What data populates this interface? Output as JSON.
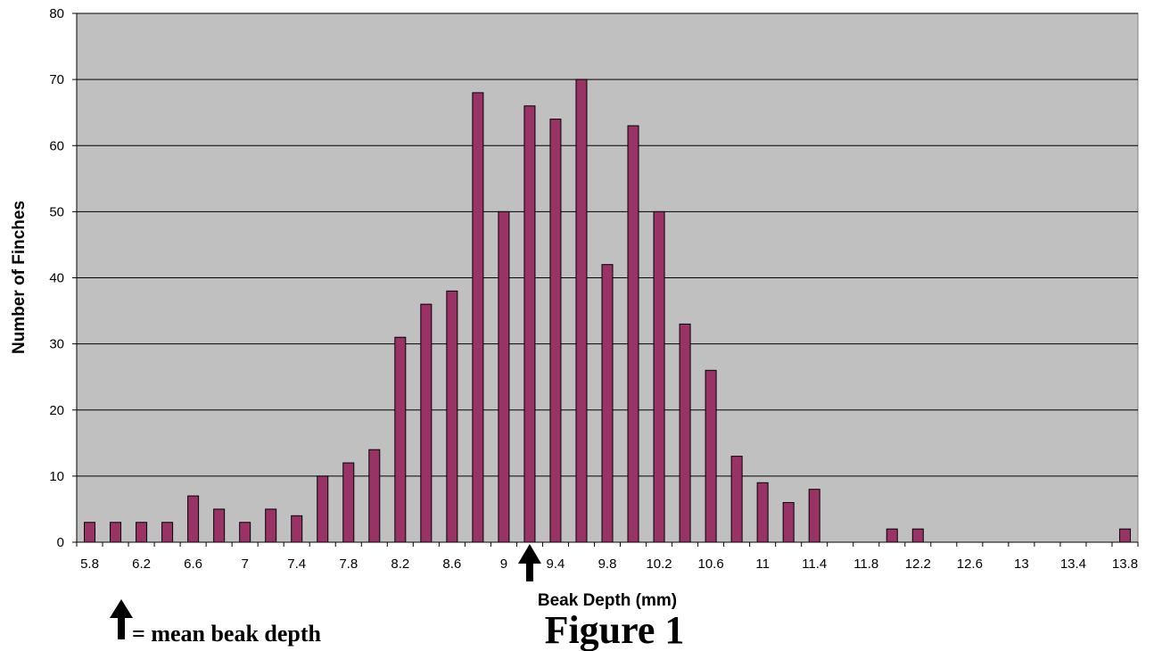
{
  "chart_data": {
    "type": "bar",
    "title": "",
    "xlabel": "Beak Depth (mm)",
    "ylabel": "Number of Finches",
    "ylim": [
      0,
      80
    ],
    "yticks": [
      0,
      10,
      20,
      30,
      40,
      50,
      60,
      70,
      80
    ],
    "grid": "horizontal",
    "colors": {
      "bar": "#993366",
      "plot_bg": "#c0c0c0",
      "grid": "#000000"
    },
    "x": [
      5.8,
      6.0,
      6.2,
      6.4,
      6.6,
      6.8,
      7.0,
      7.2,
      7.4,
      7.6,
      7.8,
      8.0,
      8.2,
      8.4,
      8.6,
      8.8,
      9.0,
      9.2,
      9.4,
      9.6,
      9.8,
      10.0,
      10.2,
      10.4,
      10.6,
      10.8,
      11.0,
      11.2,
      11.4,
      11.6,
      11.8,
      12.0,
      12.2,
      12.4,
      12.6,
      12.8,
      13.0,
      13.2,
      13.4,
      13.6,
      13.8
    ],
    "values": [
      3,
      3,
      3,
      3,
      7,
      5,
      3,
      5,
      4,
      10,
      12,
      14,
      31,
      36,
      38,
      68,
      50,
      66,
      64,
      70,
      42,
      63,
      50,
      33,
      26,
      13,
      9,
      6,
      8,
      0,
      0,
      2,
      2,
      0,
      0,
      0,
      0,
      0,
      0,
      0,
      2
    ],
    "x_tick_labels": [
      "5.8",
      "6.2",
      "6.6",
      "7",
      "7.4",
      "7.8",
      "8.2",
      "8.6",
      "9",
      "9.4",
      "9.8",
      "10.2",
      "10.6",
      "11",
      "11.4",
      "11.8",
      "12.2",
      "12.6",
      "13",
      "13.4",
      "13.8"
    ],
    "mean_marker_x": 9.2,
    "legend_text": "= mean beak depth",
    "figure_label": "Figure 1"
  }
}
